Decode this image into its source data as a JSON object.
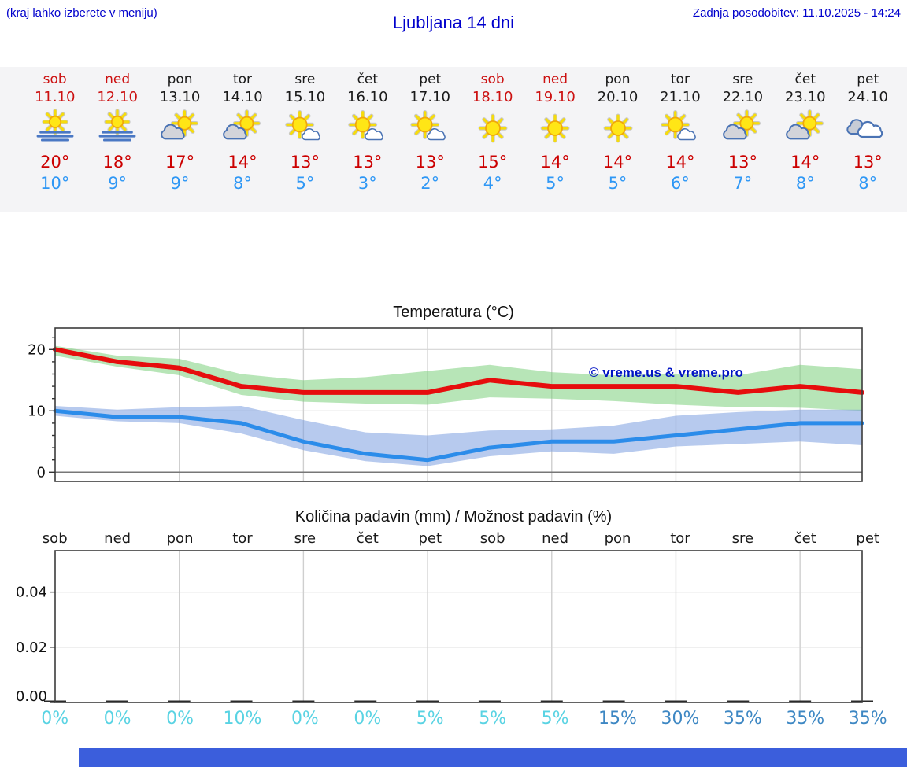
{
  "page": {
    "hint": "(kraj lahko izberete v meniju)",
    "title": "Ljubljana 14 dni",
    "updated": "Zadnja posodobitev: 11.10.2025 - 14:24"
  },
  "colors": {
    "link_blue": "#0000cc",
    "weekend_red": "#cc1111",
    "high_red": "#cc0000",
    "low_blue": "#2e97f5",
    "temp_line_high": "#e60d0d",
    "temp_line_low": "#2b8cea",
    "band_green": "#7ccf7c",
    "band_blue": "#7b9fe0",
    "prob_light": "#59d3e3",
    "prob_strong": "#3d87c3",
    "strip_bg": "#f4f4f6",
    "bottom_bar": "#3b5edc"
  },
  "days": [
    {
      "name": "sob",
      "date": "11.10",
      "weekend": true,
      "icon": "sun-fog",
      "high": "20°",
      "low": "10°",
      "prob": "0%"
    },
    {
      "name": "ned",
      "date": "12.10",
      "weekend": true,
      "icon": "sun-fog",
      "high": "18°",
      "low": "9°",
      "prob": "0%"
    },
    {
      "name": "pon",
      "date": "13.10",
      "weekend": false,
      "icon": "sun-cloud-gray",
      "high": "17°",
      "low": "9°",
      "prob": "0%"
    },
    {
      "name": "tor",
      "date": "14.10",
      "weekend": false,
      "icon": "sun-cloud-gray",
      "high": "14°",
      "low": "8°",
      "prob": "10%"
    },
    {
      "name": "sre",
      "date": "15.10",
      "weekend": false,
      "icon": "sun-cloud-white",
      "high": "13°",
      "low": "5°",
      "prob": "0%"
    },
    {
      "name": "čet",
      "date": "16.10",
      "weekend": false,
      "icon": "sun-cloud-white",
      "high": "13°",
      "low": "3°",
      "prob": "0%"
    },
    {
      "name": "pet",
      "date": "17.10",
      "weekend": false,
      "icon": "sun-cloud-white",
      "high": "13°",
      "low": "2°",
      "prob": "5%"
    },
    {
      "name": "sob",
      "date": "18.10",
      "weekend": true,
      "icon": "sun",
      "high": "15°",
      "low": "4°",
      "prob": "5%"
    },
    {
      "name": "ned",
      "date": "19.10",
      "weekend": true,
      "icon": "sun",
      "high": "14°",
      "low": "5°",
      "prob": "5%"
    },
    {
      "name": "pon",
      "date": "20.10",
      "weekend": false,
      "icon": "sun",
      "high": "14°",
      "low": "5°",
      "prob": "15%"
    },
    {
      "name": "tor",
      "date": "21.10",
      "weekend": false,
      "icon": "sun-cloud-white",
      "high": "14°",
      "low": "6°",
      "prob": "30%"
    },
    {
      "name": "sre",
      "date": "22.10",
      "weekend": false,
      "icon": "sun-cloud-gray",
      "high": "13°",
      "low": "7°",
      "prob": "35%"
    },
    {
      "name": "čet",
      "date": "23.10",
      "weekend": false,
      "icon": "sun-cloud-gray",
      "high": "14°",
      "low": "8°",
      "prob": "35%"
    },
    {
      "name": "pet",
      "date": "24.10",
      "weekend": false,
      "icon": "cloudy",
      "high": "13°",
      "low": "8°",
      "prob": "35%"
    }
  ],
  "chart_data": [
    {
      "type": "line",
      "title": "Temperatura (°C)",
      "watermark": "© vreme.us & vreme.pro",
      "x_labels": [
        "sob",
        "ned",
        "pon",
        "tor",
        "sre",
        "čet",
        "pet",
        "sob",
        "ned",
        "pon",
        "tor",
        "sre",
        "čet",
        "pet"
      ],
      "ylim": [
        -1.5,
        23.5
      ],
      "yticks": [
        0,
        10,
        20
      ],
      "grid": true,
      "series": [
        {
          "name": "high_temp",
          "color": "#e60d0d",
          "values": [
            20,
            18,
            17,
            14,
            13,
            13,
            13,
            15,
            14,
            14,
            14,
            13,
            14,
            13
          ],
          "band_upper": [
            20.6,
            19.0,
            18.5,
            16.0,
            15.0,
            15.5,
            16.5,
            17.5,
            16.3,
            15.8,
            16.0,
            15.8,
            17.5,
            16.8
          ],
          "band_lower": [
            19.0,
            17.2,
            15.8,
            12.6,
            11.5,
            11.2,
            11.0,
            12.2,
            12.0,
            11.6,
            11.0,
            10.6,
            10.5,
            10.0
          ]
        },
        {
          "name": "low_temp",
          "color": "#2b8cea",
          "values": [
            10,
            9,
            9,
            8,
            5,
            3,
            2,
            4,
            5,
            5,
            6,
            7,
            8,
            8
          ],
          "band_upper": [
            10.8,
            10.2,
            10.6,
            10.8,
            8.5,
            6.5,
            6.0,
            6.8,
            7.0,
            7.6,
            9.2,
            9.8,
            10.2,
            10.2
          ],
          "band_lower": [
            9.2,
            8.3,
            8.0,
            6.3,
            3.6,
            1.8,
            1.0,
            2.6,
            3.4,
            3.0,
            4.2,
            4.6,
            5.0,
            4.4
          ]
        }
      ]
    },
    {
      "type": "bar",
      "title": "Količina padavin (mm) / Možnost padavin (%)",
      "x_labels": [
        "sob",
        "ned",
        "pon",
        "tor",
        "sre",
        "čet",
        "pet",
        "sob",
        "ned",
        "pon",
        "tor",
        "sre",
        "čet",
        "pet"
      ],
      "values": [
        0,
        0,
        0,
        0,
        0,
        0,
        0,
        0,
        0,
        0,
        0,
        0,
        0,
        0
      ],
      "ylim": [
        0,
        0.055
      ],
      "yticks": [
        "0.00",
        "0.02",
        "0.04"
      ],
      "probabilities_pct": [
        0,
        0,
        0,
        10,
        0,
        0,
        5,
        5,
        5,
        15,
        30,
        35,
        35,
        35
      ],
      "grid": true
    }
  ]
}
